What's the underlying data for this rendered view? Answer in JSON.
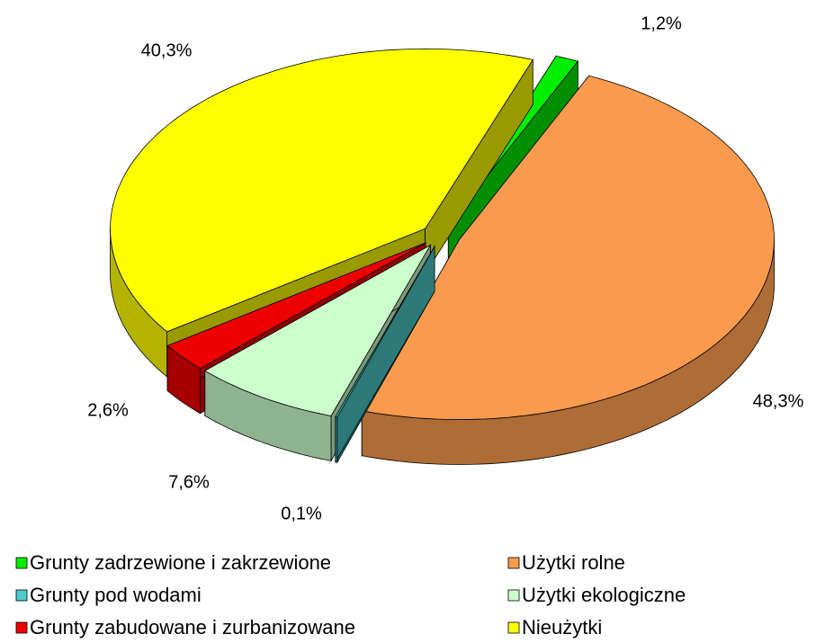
{
  "chart_data": {
    "type": "pie3d",
    "categories": [
      "Grunty zadrzewione i zakrzewione",
      "Użytki rolne",
      "Grunty pod wodami",
      "Użytki ekologiczne",
      "Grunty zabudowane i zurbanizowane",
      "Nieużytki"
    ],
    "values": [
      1.2,
      48.3,
      0.1,
      7.6,
      2.6,
      40.3
    ],
    "value_labels": [
      "1,2%",
      "48,3%",
      "0,1%",
      "7,6%",
      "2,6%",
      "40,3%"
    ],
    "colors": [
      "#00ee00",
      "#f99a4e",
      "#4ccccc",
      "#ccffcc",
      "#ee0000",
      "#ffff00"
    ],
    "legend": "bottom"
  }
}
